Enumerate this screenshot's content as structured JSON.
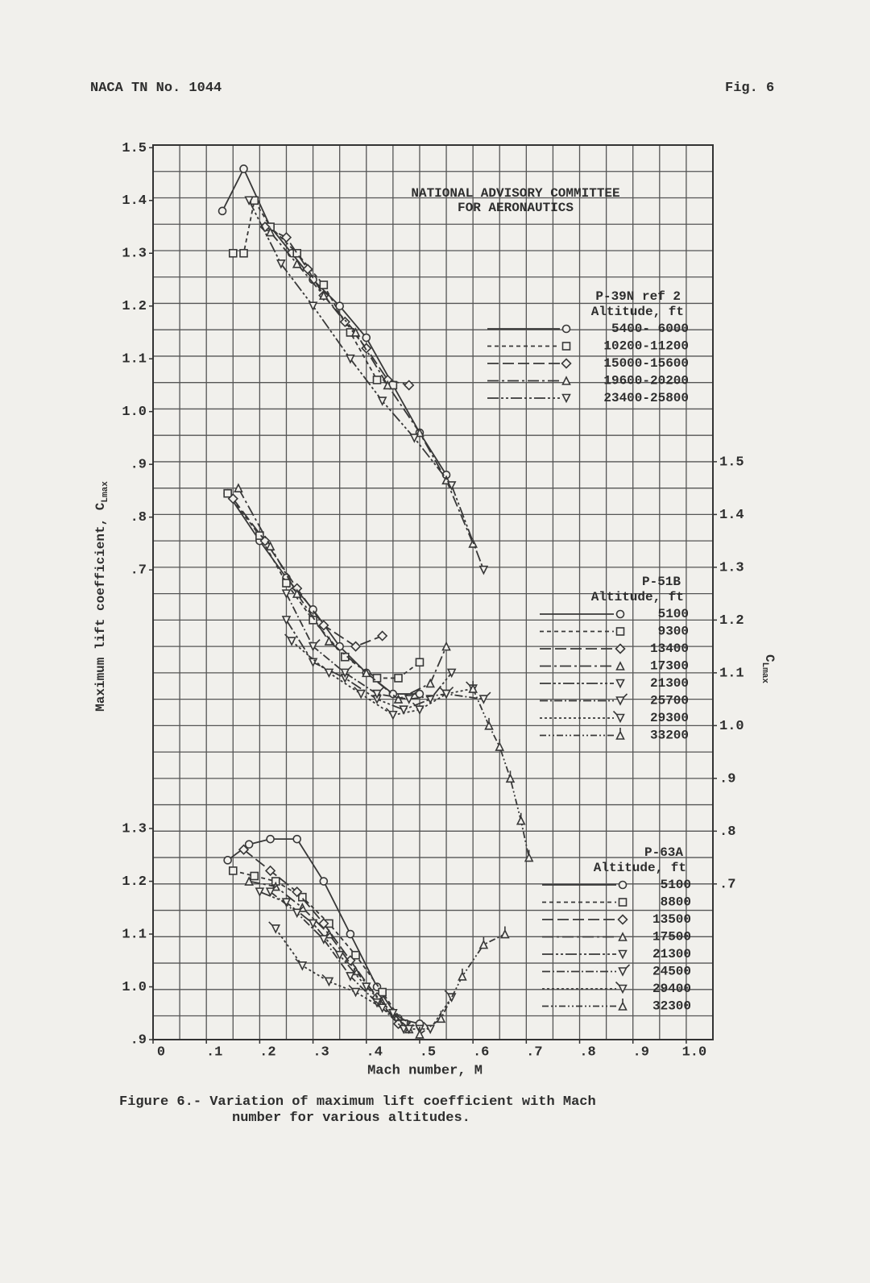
{
  "header": {
    "left": "NACA TN No. 1044",
    "right": "Fig. 6"
  },
  "caption": [
    "Figure 6.- Variation of maximum lift coefficient with Mach",
    "number for various altitudes."
  ],
  "chart_data": [
    {
      "type": "line",
      "title": "P-39N ref 2",
      "legend_title": "Altitude, ft",
      "color": "#383838",
      "annotation": [
        "NATIONAL ADVISORY COMMITTEE",
        "FOR AERONAUTICS"
      ],
      "axis_side": "left",
      "ylabel": "Maximum lift coefficient, C",
      "ylabel_sub": "Lmax",
      "xlim": [
        0,
        1.05
      ],
      "ylim": [
        -0.19,
        1.505
      ],
      "yticks": [
        {
          "value": 0.7,
          "label": ".7"
        },
        {
          "value": 0.8,
          "label": ".8"
        },
        {
          "value": 0.9,
          "label": ".9"
        },
        {
          "value": 1,
          "label": "1.0"
        },
        1.1,
        1.2,
        1.3,
        1.4,
        1.5
      ],
      "series": [
        {
          "name": "5400- 6000",
          "marker": "circle",
          "dash": "",
          "x": [
            0.13,
            0.17,
            0.22,
            0.26,
            0.3,
            0.35,
            0.4,
            0.45,
            0.5,
            0.55
          ],
          "values": [
            1.38,
            1.46,
            1.35,
            1.3,
            1.25,
            1.2,
            1.14,
            1.05,
            0.96,
            0.88
          ]
        },
        {
          "name": "10200-11200",
          "marker": "square",
          "dash": "5 4",
          "x": [
            0.15,
            0.17,
            0.19,
            0.22,
            0.27,
            0.32,
            0.37,
            0.42,
            0.45
          ],
          "values": [
            1.3,
            1.3,
            1.4,
            1.35,
            1.3,
            1.24,
            1.15,
            1.06,
            1.05
          ]
        },
        {
          "name": "15000-15600",
          "marker": "diamond",
          "dash": "14 5",
          "x": [
            0.21,
            0.25,
            0.29,
            0.32,
            0.36,
            0.4,
            0.44,
            0.48
          ],
          "values": [
            1.35,
            1.33,
            1.27,
            1.22,
            1.17,
            1.12,
            1.06,
            1.05
          ]
        },
        {
          "name": "19600-20200",
          "marker": "triangle",
          "dash": "14 4 3 4",
          "x": [
            0.22,
            0.27,
            0.32,
            0.38,
            0.44,
            0.5,
            0.55,
            0.6
          ],
          "values": [
            1.34,
            1.28,
            1.22,
            1.15,
            1.05,
            0.96,
            0.87,
            0.75
          ]
        },
        {
          "name": "23400-25800",
          "marker": "triangle-down",
          "dash": "14 3 3 3 3 3",
          "x": [
            0.18,
            0.24,
            0.3,
            0.37,
            0.43,
            0.49,
            0.56,
            0.62
          ],
          "values": [
            1.4,
            1.28,
            1.2,
            1.1,
            1.02,
            0.95,
            0.86,
            0.7
          ]
        }
      ]
    },
    {
      "type": "line",
      "title": "P-51B",
      "legend_title": "Altitude, ft",
      "color": "#383838",
      "axis_side": "right",
      "ylabel": "C",
      "ylabel_sub": "Lmax",
      "xlim": [
        0,
        1.05
      ],
      "ylim": [
        0.405,
        2.1
      ],
      "yticks": [
        {
          "value": 0.7,
          "label": ".7"
        },
        {
          "value": 0.8,
          "label": ".8"
        },
        {
          "value": 0.9,
          "label": ".9"
        },
        {
          "value": 1,
          "label": "1.0"
        },
        1.1,
        1.2,
        1.3,
        1.4,
        1.5
      ],
      "series": [
        {
          "name": "5100",
          "marker": "circle",
          "dash": "",
          "x": [
            0.14,
            0.2,
            0.25,
            0.3,
            0.35,
            0.4,
            0.45,
            0.5
          ],
          "values": [
            1.44,
            1.35,
            1.28,
            1.22,
            1.15,
            1.1,
            1.06,
            1.06
          ]
        },
        {
          "name": "9300",
          "marker": "square",
          "dash": "5 4",
          "x": [
            0.14,
            0.2,
            0.25,
            0.3,
            0.36,
            0.42,
            0.46,
            0.5
          ],
          "values": [
            1.44,
            1.36,
            1.27,
            1.2,
            1.13,
            1.09,
            1.09,
            1.12
          ]
        },
        {
          "name": "13400",
          "marker": "diamond",
          "dash": "14 5",
          "x": [
            0.15,
            0.21,
            0.27,
            0.32,
            0.38,
            0.43
          ],
          "values": [
            1.43,
            1.35,
            1.26,
            1.19,
            1.15,
            1.17
          ]
        },
        {
          "name": "17300",
          "marker": "triangle",
          "dash": "14 4 3 4",
          "x": [
            0.16,
            0.22,
            0.27,
            0.33,
            0.4,
            0.46,
            0.52,
            0.55
          ],
          "values": [
            1.45,
            1.34,
            1.25,
            1.16,
            1.1,
            1.05,
            1.08,
            1.15
          ]
        },
        {
          "name": "21300",
          "marker": "triangle-down",
          "dash": "14 3 3 3 3 3",
          "x": [
            0.25,
            0.3,
            0.36,
            0.42,
            0.47,
            0.52,
            0.56
          ],
          "values": [
            1.2,
            1.12,
            1.09,
            1.05,
            1.03,
            1.05,
            1.1
          ]
        },
        {
          "name": "25700",
          "marker": "flag",
          "dash": "10 3 2 3",
          "x": [
            0.25,
            0.3,
            0.36,
            0.42,
            0.48,
            0.55,
            0.62
          ],
          "values": [
            1.25,
            1.15,
            1.1,
            1.06,
            1.05,
            1.06,
            1.05
          ]
        },
        {
          "name": "29300",
          "marker": "flag-left",
          "dash": "3 3",
          "x": [
            0.26,
            0.33,
            0.39,
            0.45,
            0.5,
            0.55,
            0.6
          ],
          "values": [
            1.16,
            1.1,
            1.06,
            1.02,
            1.03,
            1.06,
            1.07
          ]
        },
        {
          "name": "33200",
          "marker": "flag-up",
          "dash": "8 3 2 3 2 3",
          "x": [
            0.6,
            0.63,
            0.65,
            0.67,
            0.69,
            0.705
          ],
          "values": [
            1.07,
            1.0,
            0.96,
            0.9,
            0.82,
            0.75
          ]
        }
      ]
    },
    {
      "type": "line",
      "title": "P-63A",
      "legend_title": "Altitude, ft",
      "color": "#383838",
      "axis_side": "left",
      "xlabel": "Mach number, M",
      "xlim": [
        0,
        1.05
      ],
      "ylim": [
        0.9,
        2.595
      ],
      "xticks": [
        0,
        {
          "value": 0.1,
          "label": ".1"
        },
        {
          "value": 0.2,
          "label": ".2"
        },
        {
          "value": 0.3,
          "label": ".3"
        },
        {
          "value": 0.4,
          "label": ".4"
        },
        {
          "value": 0.5,
          "label": ".5"
        },
        {
          "value": 0.6,
          "label": ".6"
        },
        {
          "value": 0.7,
          "label": ".7"
        },
        {
          "value": 0.8,
          "label": ".8"
        },
        {
          "value": 0.9,
          "label": ".9"
        },
        {
          "value": 1,
          "label": "1.0"
        }
      ],
      "yticks": [
        {
          "value": 0.9,
          "label": ".9"
        },
        {
          "value": 1,
          "label": "1.0"
        },
        1.1,
        1.2,
        1.3
      ],
      "series": [
        {
          "name": "5100",
          "marker": "circle",
          "dash": "",
          "x": [
            0.14,
            0.18,
            0.22,
            0.27,
            0.32,
            0.37,
            0.42,
            0.46,
            0.5
          ],
          "values": [
            1.24,
            1.27,
            1.28,
            1.28,
            1.2,
            1.1,
            1.0,
            0.94,
            0.93
          ]
        },
        {
          "name": "8800",
          "marker": "square",
          "dash": "5 4",
          "x": [
            0.15,
            0.19,
            0.23,
            0.28,
            0.33,
            0.38,
            0.43,
            0.47
          ],
          "values": [
            1.22,
            1.21,
            1.2,
            1.17,
            1.12,
            1.06,
            0.99,
            0.93
          ]
        },
        {
          "name": "13500",
          "marker": "diamond",
          "dash": "14 5",
          "x": [
            0.17,
            0.22,
            0.27,
            0.32,
            0.37,
            0.42,
            0.46
          ],
          "values": [
            1.26,
            1.22,
            1.18,
            1.12,
            1.05,
            0.98,
            0.93
          ]
        },
        {
          "name": "17500",
          "marker": "triangle",
          "dash": "14 4 3 4",
          "x": [
            0.18,
            0.23,
            0.28,
            0.33,
            0.38,
            0.43,
            0.48
          ],
          "values": [
            1.2,
            1.19,
            1.15,
            1.1,
            1.03,
            0.97,
            0.92
          ]
        },
        {
          "name": "21300",
          "marker": "triangle-down",
          "dash": "14 3 3 3 3 3",
          "x": [
            0.2,
            0.25,
            0.3,
            0.35,
            0.4,
            0.45,
            0.5
          ],
          "values": [
            1.18,
            1.16,
            1.12,
            1.06,
            1.0,
            0.95,
            0.92
          ]
        },
        {
          "name": "24500",
          "marker": "flag",
          "dash": "10 3 2 3",
          "x": [
            0.22,
            0.27,
            0.32,
            0.37,
            0.42,
            0.47
          ],
          "values": [
            1.18,
            1.14,
            1.09,
            1.02,
            0.97,
            0.92
          ]
        },
        {
          "name": "29400",
          "marker": "flag-left",
          "dash": "3 3",
          "x": [
            0.23,
            0.28,
            0.33,
            0.38,
            0.43,
            0.48,
            0.52,
            0.56
          ],
          "values": [
            1.11,
            1.04,
            1.01,
            0.99,
            0.96,
            0.92,
            0.92,
            0.98
          ]
        },
        {
          "name": "32300",
          "marker": "flag-up",
          "dash": "8 3 2 3 2 3",
          "x": [
            0.5,
            0.54,
            0.58,
            0.62,
            0.66
          ],
          "values": [
            0.91,
            0.94,
            1.02,
            1.08,
            1.1
          ]
        }
      ]
    }
  ]
}
